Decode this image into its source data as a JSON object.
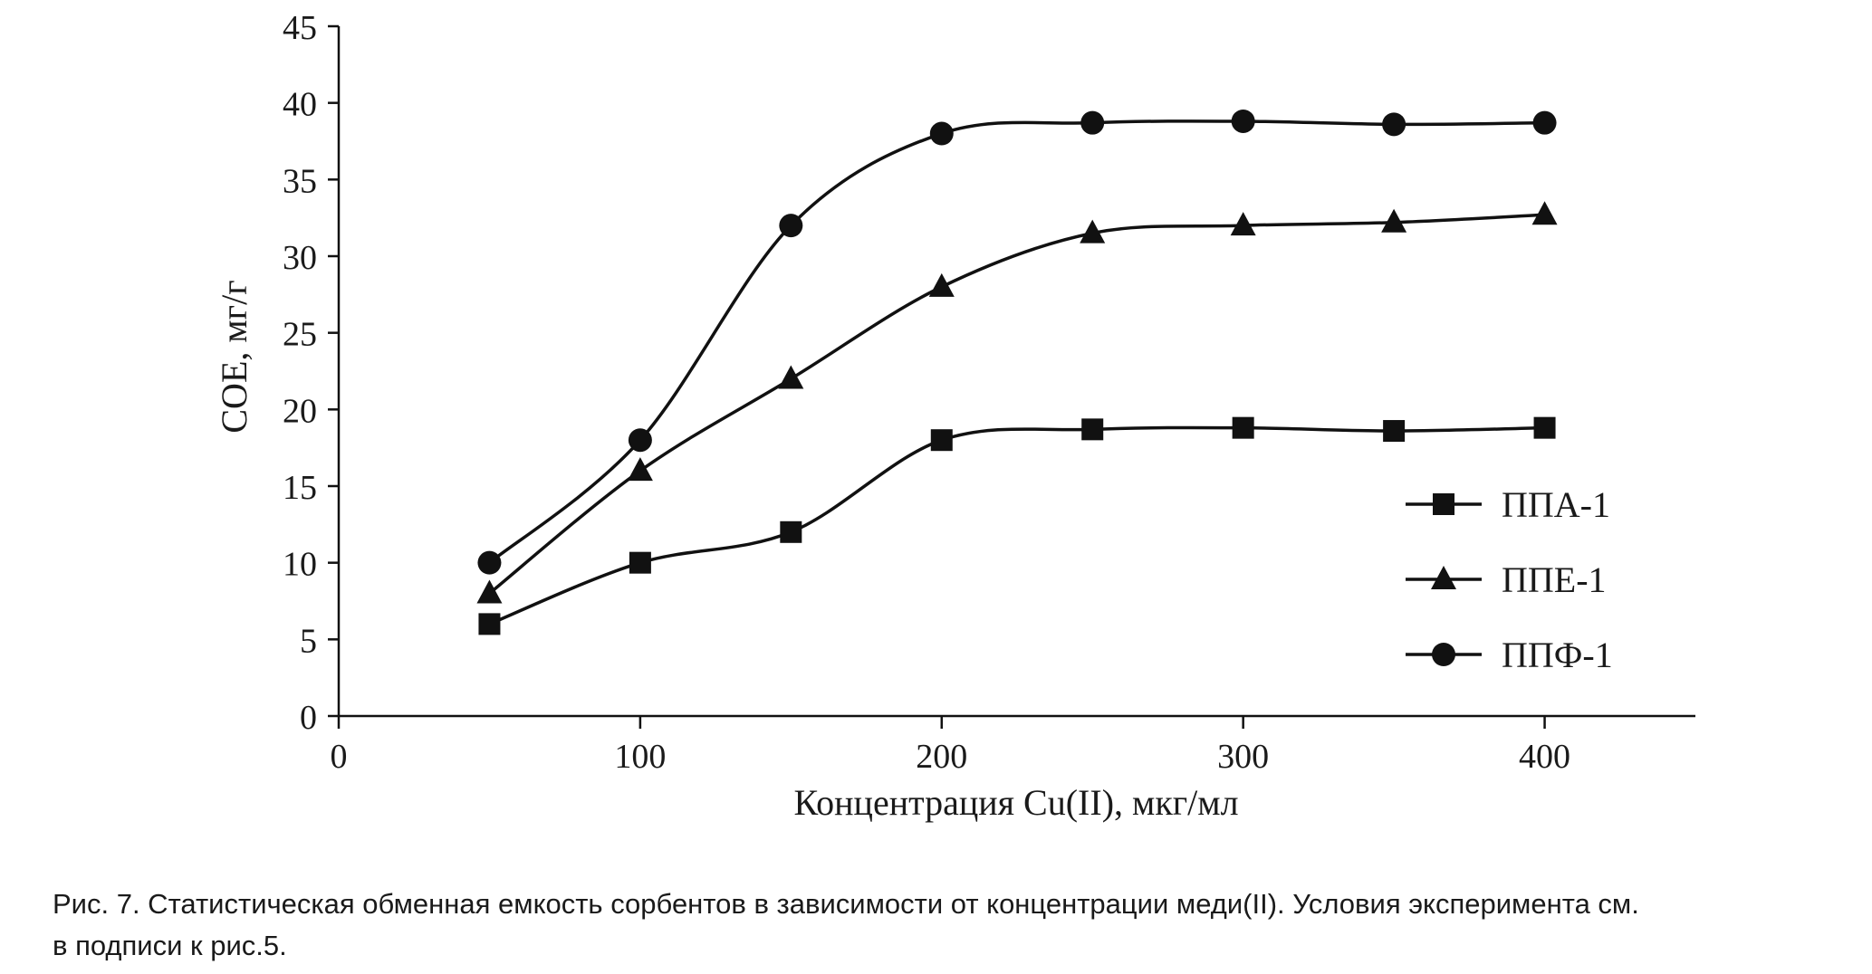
{
  "chart_data": {
    "type": "line",
    "xlabel": "Концентрация Cu(II), мкг/мл",
    "ylabel": "СОЕ, мг/г",
    "xlim": [
      0,
      450
    ],
    "ylim": [
      0,
      45
    ],
    "xticks": [
      0,
      100,
      200,
      300,
      400
    ],
    "yticks": [
      0,
      5,
      10,
      15,
      20,
      25,
      30,
      35,
      40,
      45
    ],
    "grid": false,
    "legend_position": "right",
    "x": [
      50,
      100,
      150,
      200,
      250,
      300,
      350,
      400
    ],
    "series": [
      {
        "name": "ППА-1",
        "marker": "square",
        "values": [
          6,
          10,
          12,
          18,
          18.7,
          18.8,
          18.6,
          18.8
        ]
      },
      {
        "name": "ППЕ-1",
        "marker": "triangle",
        "values": [
          8,
          16,
          22,
          28,
          31.5,
          32,
          32.2,
          32.7
        ]
      },
      {
        "name": "ППФ-1",
        "marker": "circle",
        "values": [
          10,
          18,
          32,
          38,
          38.7,
          38.8,
          38.6,
          38.7
        ]
      }
    ],
    "line_color": "#111111"
  },
  "caption": {
    "line1": "Рис. 7. Статистическая обменная емкость сорбентов в зависимости от концентрации меди(II). Условия эксперимента см.",
    "line2": "в подписи к рис.5."
  }
}
